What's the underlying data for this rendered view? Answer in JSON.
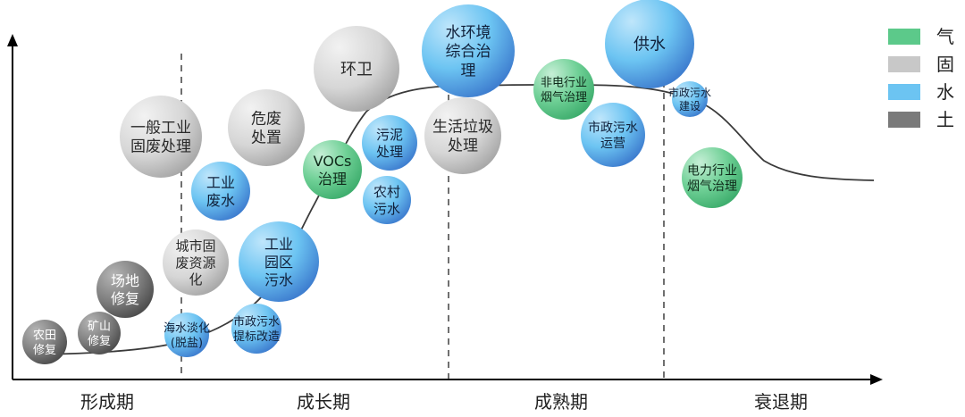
{
  "stages": [
    "形成期",
    "成长期",
    "成熟期",
    "衰退期"
  ],
  "legend": [
    {
      "label": "气",
      "color": "#5cc98a"
    },
    {
      "label": "固",
      "color": "#c8c8c8"
    },
    {
      "label": "水",
      "color": "#6cc4f2"
    },
    {
      "label": "土",
      "color": "#7a7a7a"
    }
  ],
  "bubbles": [
    {
      "lines": [
        "农田",
        "修复"
      ],
      "type": "土"
    },
    {
      "lines": [
        "矿山",
        "修复"
      ],
      "type": "土"
    },
    {
      "lines": [
        "场地",
        "修复"
      ],
      "type": "土"
    },
    {
      "lines": [
        "城市固",
        "废资源",
        "化"
      ],
      "type": "固"
    },
    {
      "lines": [
        "海水淡化",
        "(脱盐)"
      ],
      "type": "水"
    },
    {
      "lines": [
        "一般工业",
        "固废处理"
      ],
      "type": "固"
    },
    {
      "lines": [
        "工业",
        "废水"
      ],
      "type": "水"
    },
    {
      "lines": [
        "危废",
        "处置"
      ],
      "type": "固"
    },
    {
      "lines": [
        "市政污水",
        "提标改造"
      ],
      "type": "水"
    },
    {
      "lines": [
        "工业",
        "园区",
        "污水"
      ],
      "type": "水"
    },
    {
      "lines": [
        "环卫"
      ],
      "type": "固"
    },
    {
      "lines": [
        "VOCs",
        "治理"
      ],
      "type": "气"
    },
    {
      "lines": [
        "污泥",
        "处理"
      ],
      "type": "水"
    },
    {
      "lines": [
        "农村",
        "污水"
      ],
      "type": "水"
    },
    {
      "lines": [
        "水环境",
        "综合治",
        "理"
      ],
      "type": "水"
    },
    {
      "lines": [
        "生活垃圾",
        "处理"
      ],
      "type": "固"
    },
    {
      "lines": [
        "非电行业",
        "烟气治理"
      ],
      "type": "气"
    },
    {
      "lines": [
        "市政污水",
        "运营"
      ],
      "type": "水"
    },
    {
      "lines": [
        "供水"
      ],
      "type": "水"
    },
    {
      "lines": [
        "市政污水",
        "建设"
      ],
      "type": "水"
    },
    {
      "lines": [
        "电力行业",
        "烟气治理"
      ],
      "type": "气"
    }
  ]
}
